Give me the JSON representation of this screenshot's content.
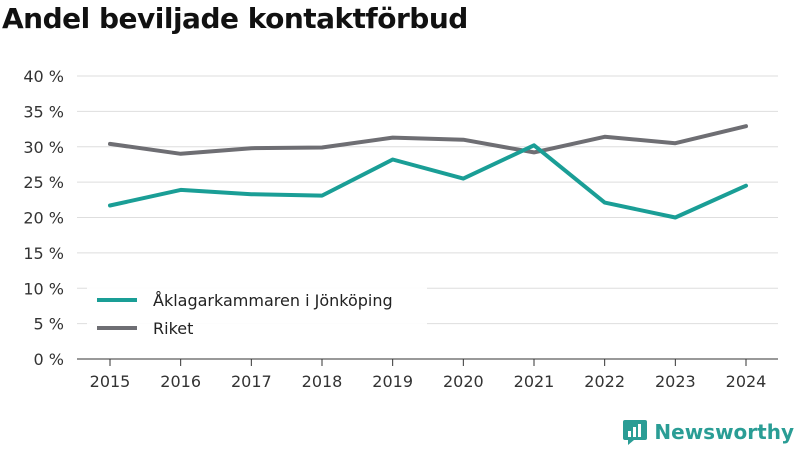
{
  "title": "Andel beviljade kontaktförbud",
  "brand": {
    "name": "Newsworthy",
    "icon": "newsworthy-logo-icon",
    "color": "#2a9d95"
  },
  "chart_data": {
    "type": "line",
    "title": "Andel beviljade kontaktförbud",
    "xlabel": "",
    "ylabel": "",
    "categories": [
      "2015",
      "2016",
      "2017",
      "2018",
      "2019",
      "2020",
      "2021",
      "2022",
      "2023",
      "2024"
    ],
    "y_ticks": [
      "0 %",
      "5 %",
      "10 %",
      "15 %",
      "20 %",
      "25 %",
      "30 %",
      "35 %",
      "40 %"
    ],
    "ylim": [
      0,
      40
    ],
    "grid": true,
    "legend_position": "bottom-left",
    "series": [
      {
        "name": "Åklagarkammaren i Jönköping",
        "color": "#1a9e96",
        "values": [
          21.7,
          23.9,
          23.3,
          23.1,
          28.2,
          25.5,
          30.2,
          22.1,
          20.0,
          24.5
        ]
      },
      {
        "name": "Riket",
        "color": "#6e6e73",
        "values": [
          30.4,
          29.0,
          29.8,
          29.9,
          31.3,
          31.0,
          29.2,
          31.4,
          30.5,
          32.9
        ]
      }
    ]
  }
}
